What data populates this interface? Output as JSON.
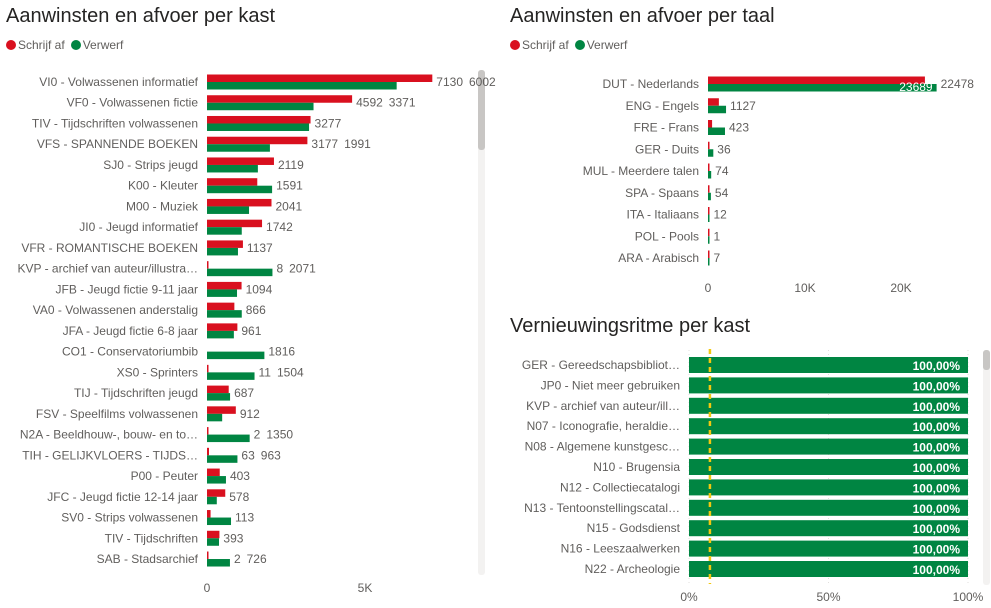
{
  "colors": {
    "schrijf_af": "#d9101f",
    "verwerf": "#008542",
    "target_line": "#f2c811"
  },
  "chart_data": [
    {
      "type": "bar",
      "orientation": "horizontal",
      "title": "Aanwinsten en afvoer per kast",
      "legend": {
        "position": "top-left",
        "entries": [
          "Schrijf af",
          "Verwerf"
        ]
      },
      "categories": [
        "VI0 - Volwassenen informatief",
        "VF0 - Volwassenen fictie",
        "TIV - Tijdschriften volwassenen",
        "VFS - SPANNENDE BOEKEN",
        "SJ0 - Strips jeugd",
        "K00 - Kleuter",
        "M00 - Muziek",
        "JI0 - Jeugd informatief",
        "VFR - ROMANTISCHE BOEKEN",
        "KVP - archief van auteur/illustra…",
        "JFB - Jeugd fictie 9-11 jaar",
        "VA0 - Volwassenen anderstalig",
        "JFA - Jeugd fictie 6-8 jaar",
        "CO1 - Conservatoriumbib",
        "XS0 - Sprinters",
        "TIJ - Tijdschriften jeugd",
        "FSV - Speelfilms volwassenen",
        "N2A - Beeldhouw-, bouw- en to…",
        "TIH - GELIJKVLOERS - TIJDS…",
        "P00 - Peuter",
        "JFC - Jeugd fictie 12-14 jaar",
        "SV0 - Strips volwassenen",
        "TIV - Tijdschriften",
        "SAB - Stadsarchief"
      ],
      "series": [
        {
          "name": "Schrijf af",
          "values": [
            7130,
            4592,
            3277,
            3177,
            2119,
            1591,
            2041,
            1742,
            1137,
            8,
            1094,
            866,
            961,
            0,
            11,
            687,
            912,
            2,
            63,
            403,
            578,
            113,
            393,
            2
          ],
          "labels": [
            "7130",
            "4592",
            "3277",
            "3177",
            "2119",
            "1591",
            "2041",
            "1742",
            "1137",
            "8",
            "1094",
            "866",
            "961",
            null,
            "11",
            "687",
            "912",
            "2",
            "63",
            "403",
            "578",
            "113",
            "393",
            "2"
          ]
        },
        {
          "name": "Verwerf",
          "values": [
            6002,
            3371,
            3230,
            1991,
            1610,
            2060,
            1330,
            1100,
            980,
            2071,
            950,
            1100,
            850,
            1816,
            1504,
            730,
            480,
            1350,
            963,
            600,
            310,
            760,
            380,
            726
          ],
          "labels": [
            "6002",
            "3371",
            null,
            "1991",
            null,
            null,
            null,
            null,
            null,
            "2071",
            null,
            null,
            null,
            "1816",
            "1504",
            null,
            null,
            "1350",
            "963",
            null,
            null,
            null,
            null,
            "726"
          ]
        }
      ],
      "xticks": [
        "0",
        "5K"
      ],
      "xlim": [
        0,
        8600
      ],
      "grid": false
    },
    {
      "type": "bar",
      "orientation": "horizontal",
      "title": "Aanwinsten en afvoer per taal",
      "legend": {
        "position": "top-left",
        "entries": [
          "Schrijf af",
          "Verwerf"
        ]
      },
      "categories": [
        "DUT - Nederlands",
        "ENG - Engels",
        "FRE - Frans",
        "GER - Duits",
        "MUL - Meerdere talen",
        "SPA - Spaans",
        "ITA - Italiaans",
        "POL - Pools",
        "ARA - Arabisch"
      ],
      "series": [
        {
          "name": "Schrijf af",
          "values": [
            22478,
            1127,
            423,
            36,
            74,
            54,
            12,
            1,
            7
          ],
          "labels": [
            "22478",
            "1127",
            "423",
            "36",
            "74",
            "54",
            "12",
            "1",
            "7"
          ]
        },
        {
          "name": "Verwerf",
          "values": [
            23689,
            1870,
            1760,
            550,
            330,
            300,
            50,
            50,
            50
          ],
          "labels": [
            "23689",
            null,
            null,
            null,
            null,
            null,
            null,
            null,
            null
          ]
        }
      ],
      "xticks": [
        "0",
        "10K",
        "20K"
      ],
      "xlim": [
        0,
        28000
      ],
      "grid": false
    },
    {
      "type": "bar",
      "orientation": "horizontal",
      "title": "Vernieuwingsritme per kast",
      "categories": [
        "GER - Gereedschapsbibliot…",
        "JP0 - Niet meer gebruiken",
        "KVP - archief van auteur/ill…",
        "N07 - Iconografie, heraldie…",
        "N08 - Algemene kunstgesc…",
        "N10 - Brugensia",
        "N12 - Collectiecatalogi",
        "N13 - Tentoonstellingscatal…",
        "N15 - Godsdienst",
        "N16 - Leeszaalwerken",
        "N22 - Archeologie"
      ],
      "values": [
        100,
        100,
        100,
        100,
        100,
        100,
        100,
        100,
        100,
        100,
        100
      ],
      "labels": [
        "100,00%",
        "100,00%",
        "100,00%",
        "100,00%",
        "100,00%",
        "100,00%",
        "100,00%",
        "100,00%",
        "100,00%",
        "100,00%",
        "100,00%"
      ],
      "target_line": 7.5,
      "xticks": [
        "0%",
        "50%",
        "100%"
      ],
      "xlim": [
        0,
        100
      ],
      "grid": true
    }
  ]
}
